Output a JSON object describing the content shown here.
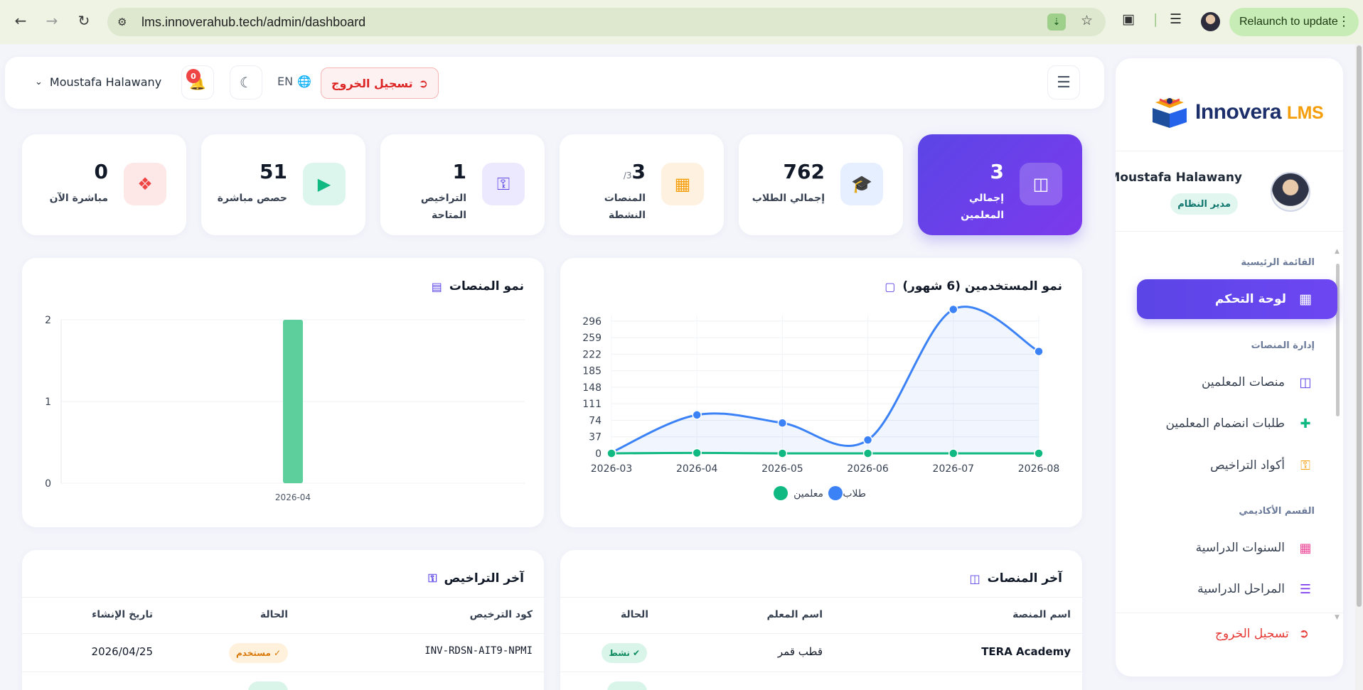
{
  "browser": {
    "url": "lms.innoverahub.tech/admin/dashboard",
    "relaunch_label": "Relaunch to update"
  },
  "header": {
    "user_name": "Moustafa Halawany",
    "notification_count": "0",
    "lang_label": "EN",
    "logout_label": "تسجيل الخروج"
  },
  "sidebar": {
    "logo_main": "Innovera",
    "logo_accent": "LMS",
    "profile_name": "Moustafa Halawany",
    "profile_role": "مدير النظام",
    "section_main": "القائمة الرئيسية",
    "dashboard_label": "لوحة التحكم",
    "section_platforms": "إدارة المنصات",
    "item_teacher_platforms": "منصات المعلمين",
    "item_join_requests": "طلبات انضمام المعلمين",
    "item_license_codes": "أكواد التراخيص",
    "section_academic": "القسم الأكاديمي",
    "item_academic_years": "السنوات الدراسية",
    "item_stages": "المراحل الدراسية",
    "logout_label": "تسجيل الخروج"
  },
  "stats": {
    "teachers": {
      "value": "3",
      "label_line1": "إجمالي",
      "label_line2": "المعلمين"
    },
    "students": {
      "value": "762",
      "label": "إجمالي الطلاب"
    },
    "platforms": {
      "value": "3",
      "suffix": "/3",
      "label_line1": "المنصات",
      "label_line2": "النشطة"
    },
    "licenses": {
      "value": "1",
      "label_line1": "التراخيص",
      "label_line2": "المتاحة"
    },
    "live_sessions": {
      "value": "51",
      "label": "حصص مباشرة"
    },
    "live_now": {
      "value": "0",
      "label": "مباشرة الآن"
    }
  },
  "colors": {
    "primary": "#5b45e6",
    "students_series": "#3b82f6",
    "teachers_series": "#10b981",
    "platform_bar": "#5ccf9c"
  },
  "users_chart": {
    "title": "نمو المستخدمين (6 شهور)",
    "legend_students": "طلاب",
    "legend_teachers": "معلمين"
  },
  "platforms_chart": {
    "title": "نمو المنصات"
  },
  "chart_data": [
    {
      "type": "line",
      "title": "نمو المستخدمين (6 شهور)",
      "x": [
        "2026-03",
        "2026-04",
        "2026-05",
        "2026-06",
        "2026-07",
        "2026-08"
      ],
      "yticks": [
        0,
        37,
        74,
        111,
        148,
        185,
        222,
        259,
        296
      ],
      "ylim": [
        0,
        310
      ],
      "grid": true,
      "legend": "bottom",
      "series": [
        {
          "name": "طلاب",
          "color": "#3b82f6",
          "fill": true,
          "values": [
            2,
            86,
            68,
            30,
            322,
            228
          ]
        },
        {
          "name": "معلمين",
          "color": "#10b981",
          "fill": false,
          "values": [
            0,
            1,
            0,
            0,
            0,
            0
          ]
        }
      ]
    },
    {
      "type": "bar",
      "title": "نمو المنصات",
      "categories": [
        "2026-04"
      ],
      "values": [
        2
      ],
      "yticks": [
        0,
        1,
        2
      ],
      "ylim": [
        0,
        2
      ],
      "grid": true
    }
  ],
  "latest_platforms": {
    "title": "آخر المنصات",
    "col_name": "اسم المنصة",
    "col_teacher": "اسم المعلم",
    "col_status": "الحالة",
    "rows": [
      {
        "name": "TERA Academy",
        "teacher": "قطب قمر",
        "status": "نشط"
      }
    ]
  },
  "latest_licenses": {
    "title": "آخر التراخيص",
    "col_code": "كود الترخيص",
    "col_status": "الحالة",
    "col_date": "تاريخ الإنشاء",
    "rows": [
      {
        "code": "INV-RDSN-AIT9-NPMI",
        "status": "مستخدم",
        "date": "2026/04/25"
      }
    ]
  }
}
